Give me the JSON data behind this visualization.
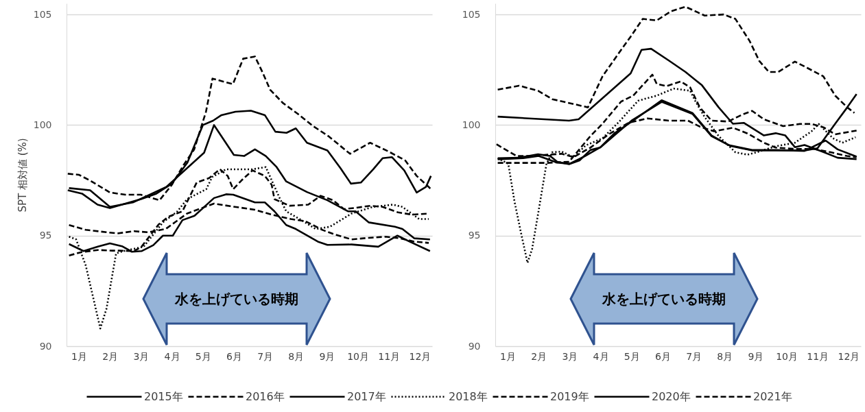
{
  "chart_data": [
    {
      "type": "line",
      "ylabel": "SPT 相対値 (%)",
      "xlim": [
        0.6,
        12.4
      ],
      "ylim": [
        90,
        105.5
      ],
      "yticks": [
        90,
        95,
        100,
        105
      ],
      "xticks": [
        {
          "value": 1,
          "label": "1月"
        },
        {
          "value": 2,
          "label": "2月"
        },
        {
          "value": 3,
          "label": "3月"
        },
        {
          "value": 4,
          "label": "4月"
        },
        {
          "value": 5,
          "label": "5月"
        },
        {
          "value": 6,
          "label": "6月"
        },
        {
          "value": 7,
          "label": "7月"
        },
        {
          "value": 8,
          "label": "8月"
        },
        {
          "value": 9,
          "label": "9月"
        },
        {
          "value": 10,
          "label": "10月"
        },
        {
          "value": 11,
          "label": "11月"
        },
        {
          "value": 12,
          "label": "12月"
        }
      ],
      "grid": "y",
      "legend": "bottom",
      "annotations": [
        "水を上げている時期"
      ],
      "series": [
        {
          "name": "2015年",
          "color": "#000000",
          "line_style": "solid",
          "x": [
            0.64,
            1.1,
            1.6,
            2.0,
            2.5,
            3.0,
            3.5,
            4.0,
            4.5,
            5.0,
            5.33,
            5.6,
            6.05,
            6.55,
            7.0,
            7.34,
            7.7,
            8.0,
            8.36,
            9.02,
            9.44,
            9.78,
            10.1,
            10.5,
            10.8,
            11.1,
            11.5,
            11.9,
            12.2,
            12.36
          ],
          "values": [
            97.05,
            96.9,
            96.4,
            96.25,
            96.45,
            96.65,
            96.9,
            97.35,
            98.3,
            100.0,
            100.2,
            100.45,
            100.6,
            100.65,
            100.45,
            99.7,
            99.65,
            99.85,
            99.2,
            98.85,
            98.05,
            97.35,
            97.4,
            98.0,
            98.5,
            98.55,
            97.95,
            96.95,
            97.2,
            97.7
          ]
        },
        {
          "name": "2016年",
          "color": "#000000",
          "line_style": "dashed",
          "x": [
            0.64,
            1.0,
            1.35,
            2.0,
            2.5,
            3.0,
            3.6,
            4.0,
            4.38,
            4.72,
            5.1,
            5.31,
            5.97,
            6.3,
            6.68,
            6.92,
            7.17,
            7.58,
            8.07,
            8.56,
            9.05,
            9.75,
            10.4,
            11.0,
            11.53,
            11.9,
            12.29,
            12.36
          ],
          "values": [
            97.8,
            97.75,
            97.5,
            96.95,
            96.85,
            96.85,
            96.6,
            97.3,
            98.2,
            98.9,
            100.6,
            102.1,
            101.85,
            103.0,
            103.1,
            102.4,
            101.6,
            101.0,
            100.5,
            99.95,
            99.5,
            98.7,
            99.2,
            98.8,
            98.4,
            97.7,
            97.2,
            97.1
          ]
        },
        {
          "name": "2017年",
          "color": "#000000",
          "line_style": "solid",
          "x": [
            0.68,
            1.36,
            2.0,
            2.74,
            3.82,
            5.04,
            5.36,
            6.0,
            6.33,
            6.68,
            7.03,
            7.38,
            7.69,
            8.36,
            9.02,
            9.68,
            9.93,
            10.35,
            11.2,
            11.44,
            11.82,
            12.33
          ],
          "values": [
            97.15,
            97.05,
            96.3,
            96.5,
            97.2,
            98.75,
            100.0,
            98.65,
            98.6,
            98.9,
            98.6,
            98.1,
            97.45,
            96.97,
            96.6,
            96.1,
            96.1,
            95.6,
            95.4,
            95.3,
            94.88,
            94.83
          ]
        },
        {
          "name": "2018年",
          "color": "#000000",
          "line_style": "dotted",
          "x": [
            0.68,
            0.91,
            1.22,
            1.69,
            1.89,
            2.2,
            2.43,
            3.09,
            3.71,
            4.18,
            4.49,
            5.11,
            5.3,
            5.75,
            6.13,
            6.6,
            7.03,
            7.19,
            7.46,
            7.69,
            8.24,
            8.64,
            9.1,
            9.8,
            10.49,
            11.13,
            11.44,
            11.98,
            12.29
          ],
          "values": [
            94.95,
            94.83,
            93.65,
            90.8,
            91.7,
            94.2,
            94.3,
            94.5,
            95.6,
            96.1,
            96.65,
            97.1,
            97.65,
            98.0,
            98.0,
            98.0,
            98.1,
            97.6,
            96.75,
            96.1,
            95.65,
            95.3,
            95.4,
            96.0,
            96.3,
            96.4,
            96.3,
            95.75,
            95.75
          ]
        },
        {
          "name": "2019年",
          "color": "#000000",
          "line_style": "dashed",
          "x": [
            0.68,
            1.22,
            2.24,
            2.78,
            3.24,
            3.8,
            4.49,
            5.36,
            5.89,
            6.68,
            7.22,
            7.84,
            8.31,
            8.87,
            9.26,
            9.8,
            10.35,
            10.89,
            11.36,
            11.82,
            12.29
          ],
          "values": [
            95.48,
            95.26,
            95.1,
            95.2,
            95.15,
            95.3,
            96.0,
            96.45,
            96.33,
            96.17,
            95.95,
            95.75,
            95.65,
            95.25,
            95.05,
            94.83,
            94.9,
            94.95,
            94.88,
            94.73,
            94.67
          ]
        },
        {
          "name": "2020年",
          "color": "#000000",
          "line_style": "solid",
          "x": [
            0.68,
            1.15,
            1.61,
            2.0,
            2.39,
            2.71,
            3.02,
            3.4,
            3.71,
            4.03,
            4.34,
            4.73,
            5.36,
            5.75,
            5.98,
            6.68,
            7.0,
            7.31,
            7.69,
            8.0,
            8.71,
            9.02,
            9.8,
            10.66,
            11.28,
            11.67,
            12.33
          ],
          "values": [
            94.62,
            94.3,
            94.5,
            94.65,
            94.52,
            94.27,
            94.3,
            94.57,
            95.0,
            95.0,
            95.7,
            95.9,
            96.7,
            96.87,
            96.85,
            96.5,
            96.5,
            96.1,
            95.48,
            95.3,
            94.73,
            94.58,
            94.6,
            94.5,
            95.0,
            94.73,
            94.3
          ]
        },
        {
          "name": "2021年",
          "color": "#000000",
          "line_style": "dashed",
          "x": [
            0.68,
            1.07,
            1.61,
            2.08,
            2.31,
            2.78,
            3.02,
            3.57,
            3.88,
            4.34,
            4.8,
            5.2,
            5.55,
            5.8,
            5.98,
            6.25,
            6.6,
            7.0,
            7.22,
            7.31,
            7.8,
            8.4,
            8.8,
            9.2,
            9.55,
            9.9,
            10.4,
            10.8,
            11.3,
            11.75,
            12.3
          ],
          "values": [
            94.1,
            94.25,
            94.35,
            94.32,
            94.32,
            94.3,
            94.5,
            95.5,
            95.85,
            96.1,
            97.4,
            97.6,
            98.0,
            97.7,
            97.1,
            97.5,
            97.95,
            97.7,
            97.3,
            96.65,
            96.35,
            96.4,
            96.8,
            96.6,
            96.2,
            96.25,
            96.35,
            96.3,
            96.05,
            95.95,
            96.0
          ]
        }
      ]
    },
    {
      "type": "line",
      "xlim": [
        0.6,
        12.4
      ],
      "ylim": [
        90,
        105.5
      ],
      "yticks": [
        90,
        95,
        100,
        105
      ],
      "xticks": [
        {
          "value": 1,
          "label": "1月"
        },
        {
          "value": 2,
          "label": "2月"
        },
        {
          "value": 3,
          "label": "3月"
        },
        {
          "value": 4,
          "label": "4月"
        },
        {
          "value": 5,
          "label": "5月"
        },
        {
          "value": 6,
          "label": "6月"
        },
        {
          "value": 7,
          "label": "7月"
        },
        {
          "value": 8,
          "label": "8月"
        },
        {
          "value": 9,
          "label": "9月"
        },
        {
          "value": 10,
          "label": "10月"
        },
        {
          "value": 11,
          "label": "11月"
        },
        {
          "value": 12,
          "label": "12月"
        }
      ],
      "grid": "y",
      "annotations": [
        "水を上げている時期"
      ],
      "series": [
        {
          "name": "2015年",
          "color": "#000000",
          "line_style": "solid",
          "x": [
            0.68,
            1.5,
            2.0,
            2.6,
            3.0,
            3.5,
            4.0,
            4.5,
            5.0,
            5.97,
            6.97,
            7.58,
            8.2,
            8.9,
            10.0,
            10.6,
            11.0,
            11.57,
            11.96,
            12.26
          ],
          "values": [
            98.45,
            98.5,
            98.6,
            98.3,
            98.25,
            98.6,
            99.0,
            99.6,
            100.2,
            101.05,
            100.5,
            99.5,
            99.05,
            98.85,
            98.85,
            98.85,
            98.95,
            100.06,
            100.8,
            101.4
          ]
        },
        {
          "name": "2016年",
          "color": "#000000",
          "line_style": "dashed",
          "x": [
            0.68,
            1.37,
            1.98,
            2.44,
            3.13,
            3.59,
            4.06,
            4.51,
            4.97,
            5.36,
            5.81,
            6.28,
            6.74,
            7.36,
            7.97,
            8.35,
            8.81,
            9.12,
            9.43,
            9.73,
            10.27,
            10.65,
            11.19,
            11.57,
            11.96,
            12.19
          ],
          "values": [
            101.6,
            101.78,
            101.55,
            101.17,
            100.95,
            100.8,
            102.2,
            103.1,
            104.0,
            104.8,
            104.73,
            105.15,
            105.35,
            104.95,
            105.0,
            104.8,
            103.8,
            102.9,
            102.4,
            102.4,
            102.87,
            102.6,
            102.2,
            101.33,
            100.8,
            100.55
          ]
        },
        {
          "name": "2017年",
          "color": "#000000",
          "line_style": "solid",
          "x": [
            0.68,
            2.98,
            3.29,
            4.97,
            5.32,
            5.63,
            6.2,
            6.74,
            7.27,
            7.81,
            8.27,
            8.62,
            9.27,
            9.65,
            9.96,
            10.27,
            10.58,
            11.19,
            11.65,
            12.26
          ],
          "values": [
            100.38,
            100.2,
            100.26,
            102.34,
            103.4,
            103.45,
            102.92,
            102.4,
            101.8,
            100.8,
            100.06,
            100.1,
            99.53,
            99.63,
            99.53,
            99.0,
            99.1,
            98.78,
            98.52,
            98.46
          ]
        },
        {
          "name": "2018年",
          "color": "#000000",
          "line_style": "dotted",
          "x": [
            0.68,
            1.02,
            1.22,
            1.41,
            1.64,
            1.79,
            2.02,
            2.25,
            2.44,
            2.74,
            3.13,
            3.52,
            4.06,
            4.59,
            5.21,
            5.81,
            6.36,
            6.89,
            7.05,
            7.35,
            7.81,
            8.35,
            8.74,
            9.04,
            9.65,
            10.27,
            10.81,
            11.04,
            11.5,
            11.8,
            12.23
          ],
          "values": [
            98.5,
            98.25,
            96.55,
            95.26,
            93.77,
            94.4,
            96.3,
            98.23,
            98.77,
            98.8,
            98.55,
            99.08,
            99.4,
            100.14,
            101.1,
            101.33,
            101.65,
            101.55,
            101.1,
            100.38,
            99.5,
            98.77,
            98.66,
            98.77,
            99.04,
            99.2,
            99.72,
            100.05,
            99.4,
            99.2,
            99.45
          ]
        },
        {
          "name": "2019年",
          "color": "#000000",
          "line_style": "dashed",
          "x": [
            0.64,
            1.29,
            1.75,
            2.29,
            2.74,
            3.13,
            3.67,
            4.28,
            4.9,
            5.51,
            6.2,
            6.82,
            7.2,
            7.66,
            8.27,
            8.74,
            9.27,
            9.65,
            10.27,
            10.88,
            11.42,
            11.95,
            12.26
          ],
          "values": [
            99.13,
            98.6,
            98.6,
            98.66,
            98.7,
            98.55,
            98.98,
            99.6,
            100.1,
            100.3,
            100.2,
            100.2,
            99.93,
            99.72,
            99.88,
            99.62,
            99.2,
            98.98,
            98.92,
            98.92,
            98.77,
            98.6,
            98.55
          ]
        },
        {
          "name": "2020年",
          "color": "#000000",
          "line_style": "solid",
          "x": [
            0.68,
            1.37,
            1.98,
            2.37,
            2.6,
            2.98,
            3.32,
            3.67,
            3.98,
            4.44,
            5.05,
            5.97,
            6.97,
            7.58,
            8.12,
            8.89,
            9.65,
            10.58,
            11.26,
            11.65,
            12.26
          ],
          "values": [
            98.5,
            98.52,
            98.68,
            98.6,
            98.34,
            98.23,
            98.4,
            98.87,
            98.98,
            99.62,
            100.2,
            101.12,
            100.54,
            99.53,
            99.1,
            98.87,
            98.87,
            98.83,
            99.3,
            98.9,
            98.57
          ]
        },
        {
          "name": "2021年",
          "color": "#000000",
          "line_style": "dashed",
          "x": [
            0.68,
            1.6,
            2.29,
            2.98,
            3.67,
            4.06,
            4.66,
            5.05,
            5.67,
            5.81,
            6.12,
            6.59,
            6.89,
            7.2,
            7.58,
            8.12,
            8.58,
            8.89,
            9.27,
            9.89,
            10.43,
            10.81,
            11.19,
            11.57,
            12.26
          ],
          "values": [
            98.29,
            98.29,
            98.29,
            98.34,
            99.5,
            100.06,
            101.06,
            101.33,
            102.28,
            101.86,
            101.76,
            101.97,
            101.7,
            100.8,
            100.2,
            100.16,
            100.48,
            100.64,
            100.26,
            99.95,
            100.05,
            100.05,
            99.9,
            99.58,
            99.75
          ]
        }
      ]
    }
  ]
}
